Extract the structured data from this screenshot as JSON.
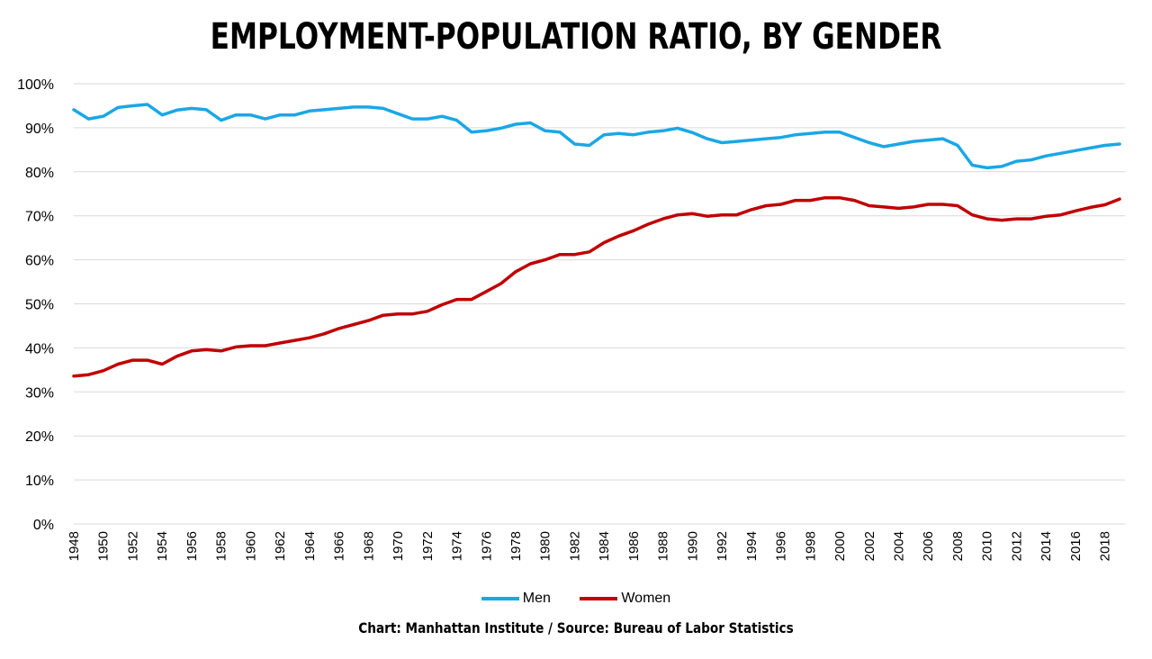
{
  "title": "EMPLOYMENT-POPULATION RATIO, BY GENDER",
  "footer": "Chart: Manhattan Institute  /  Source: Bureau of Labor Statistics",
  "colors": {
    "men": "#1aa7e6",
    "women": "#c00000",
    "grid": "#d9d9d9"
  },
  "chart_data": {
    "type": "line",
    "title": "EMPLOYMENT-POPULATION RATIO, BY GENDER",
    "xlabel": "",
    "ylabel": "",
    "ylim": [
      0,
      100
    ],
    "y_tick_labels": [
      "0%",
      "10%",
      "20%",
      "30%",
      "40%",
      "50%",
      "60%",
      "70%",
      "80%",
      "90%",
      "100%"
    ],
    "x": [
      1948,
      1949,
      1950,
      1951,
      1952,
      1953,
      1954,
      1955,
      1956,
      1957,
      1958,
      1959,
      1960,
      1961,
      1962,
      1963,
      1964,
      1965,
      1966,
      1967,
      1968,
      1969,
      1970,
      1971,
      1972,
      1973,
      1974,
      1975,
      1976,
      1977,
      1978,
      1979,
      1980,
      1981,
      1982,
      1983,
      1984,
      1985,
      1986,
      1987,
      1988,
      1989,
      1990,
      1991,
      1992,
      1993,
      1994,
      1995,
      1996,
      1997,
      1998,
      1999,
      2000,
      2001,
      2002,
      2003,
      2004,
      2005,
      2006,
      2007,
      2008,
      2009,
      2010,
      2011,
      2012,
      2013,
      2014,
      2015,
      2016,
      2017,
      2018,
      2019
    ],
    "x_tick_labels": [
      "1948",
      "1950",
      "1952",
      "1954",
      "1956",
      "1958",
      "1960",
      "1962",
      "1964",
      "1966",
      "1968",
      "1970",
      "1972",
      "1974",
      "1976",
      "1978",
      "1980",
      "1982",
      "1984",
      "1986",
      "1988",
      "1990",
      "1992",
      "1994",
      "1996",
      "1998",
      "2000",
      "2002",
      "2004",
      "2006",
      "2008",
      "2010",
      "2012",
      "2014",
      "2016",
      "2018"
    ],
    "grid": true,
    "legend": "bottom",
    "series": [
      {
        "name": "Men",
        "color": "#1aa7e6",
        "values": [
          94.1,
          92.0,
          92.6,
          94.6,
          95.0,
          95.3,
          92.9,
          94.0,
          94.4,
          94.1,
          91.7,
          92.9,
          92.9,
          92.0,
          92.9,
          92.9,
          93.8,
          94.1,
          94.4,
          94.7,
          94.7,
          94.4,
          93.2,
          92.0,
          92.0,
          92.6,
          91.7,
          89.0,
          89.3,
          89.9,
          90.8,
          91.1,
          89.3,
          89.0,
          86.3,
          86.0,
          88.4,
          88.7,
          88.4,
          89.0,
          89.3,
          89.9,
          88.9,
          87.5,
          86.6,
          86.9,
          87.2,
          87.5,
          87.8,
          88.4,
          88.7,
          89.0,
          89.0,
          87.8,
          86.6,
          85.7,
          86.3,
          86.9,
          87.2,
          87.5,
          86.0,
          81.5,
          80.9,
          81.2,
          82.4,
          82.7,
          83.6,
          84.2,
          84.8,
          85.4,
          86.0,
          86.3
        ]
      },
      {
        "name": "Women",
        "color": "#c00000",
        "values": [
          33.6,
          33.9,
          34.8,
          36.3,
          37.2,
          37.2,
          36.3,
          38.1,
          39.3,
          39.6,
          39.3,
          40.2,
          40.5,
          40.5,
          41.1,
          41.7,
          42.3,
          43.2,
          44.4,
          45.3,
          46.2,
          47.4,
          47.7,
          47.7,
          48.3,
          49.8,
          51.0,
          51.0,
          52.8,
          54.6,
          57.3,
          59.1,
          60.0,
          61.2,
          61.2,
          61.8,
          63.9,
          65.4,
          66.6,
          68.1,
          69.3,
          70.2,
          70.5,
          69.9,
          70.2,
          70.2,
          71.4,
          72.3,
          72.6,
          73.5,
          73.5,
          74.1,
          74.1,
          73.5,
          72.3,
          72.0,
          71.7,
          72.0,
          72.6,
          72.6,
          72.3,
          70.2,
          69.3,
          69.0,
          69.3,
          69.3,
          69.9,
          70.2,
          71.1,
          71.9,
          72.5,
          73.8
        ]
      }
    ]
  }
}
